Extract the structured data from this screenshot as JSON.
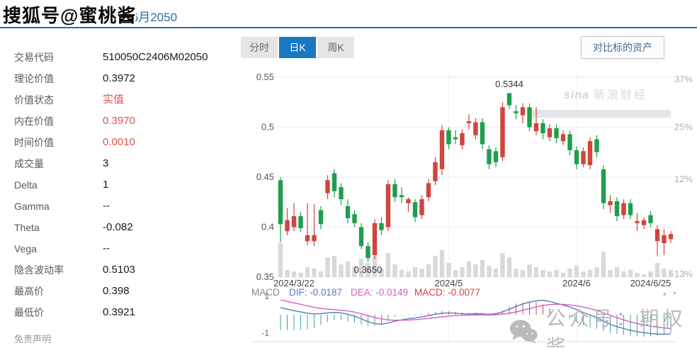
{
  "watermarks": {
    "sohu": "搜狐号@蜜桃酱",
    "sina_logo": "sina",
    "sina_cn": "新浪财经",
    "wechat": "公众号：期权酱"
  },
  "header": {
    "title_visible": "TF购6月2050"
  },
  "sidebar": {
    "rows": [
      {
        "label": "交易代码",
        "value": "510050C2406M02050",
        "accent": "default"
      },
      {
        "label": "理论价值",
        "value": "0.3972",
        "accent": "default"
      },
      {
        "label": "价值状态",
        "value": "实值",
        "accent": "red"
      },
      {
        "label": "内在价值",
        "value": "0.3970",
        "accent": "red"
      },
      {
        "label": "时间价值",
        "value": "0.0010",
        "accent": "red"
      },
      {
        "label": "成交量",
        "value": "3",
        "accent": "default"
      },
      {
        "label": "Delta",
        "value": "1",
        "accent": "default"
      },
      {
        "label": "Gamma",
        "value": "--",
        "accent": "default"
      },
      {
        "label": "Theta",
        "value": "-0.082",
        "accent": "default"
      },
      {
        "label": "Vega",
        "value": "--",
        "accent": "default"
      },
      {
        "label": "隐含波动率",
        "value": "0.5103",
        "accent": "default"
      },
      {
        "label": "最高价",
        "value": "0.398",
        "accent": "default"
      },
      {
        "label": "最低价",
        "value": "0.3921",
        "accent": "default"
      }
    ],
    "disclaimer": "免责声明"
  },
  "toolbar": {
    "tabs": [
      {
        "label": "分时"
      },
      {
        "label": "日K"
      },
      {
        "label": "周K"
      }
    ],
    "active_index": 1,
    "compare_button": "对比标的资产"
  },
  "colors": {
    "up": "#d0453c",
    "down": "#1f9e4d",
    "volume": "#d9d9d9",
    "dif": "#5b79bd",
    "dea": "#cf62c4",
    "hist_pos": "#c0504d",
    "hist_neg": "#46a0a0",
    "grid": "#ececec",
    "axis_text": "#555555",
    "pct_text": "#b0b0b0",
    "accent_blue": "#1779c4",
    "red_text": "#d9534f",
    "band": "#e2e6e8"
  },
  "chart_data": {
    "type": "candlestick",
    "title": "",
    "xlabel": "",
    "ylabel": "",
    "ylim": [
      0.35,
      0.55
    ],
    "grid": true,
    "y_axis_values": [
      0.55,
      0.5,
      0.45,
      0.4,
      0.35
    ],
    "y_axis_labels": [
      "0.55",
      "0.5",
      "0.45",
      "0.4",
      "0.35"
    ],
    "pct_axis": {
      "base_price": 0.4,
      "values": [
        37,
        25,
        12,
        -13
      ],
      "labels": [
        "37%",
        "25%",
        "12%",
        "-13%"
      ]
    },
    "x_ticks": [
      {
        "label": "2024/3/22",
        "at_index": 2,
        "gridline": false
      },
      {
        "label": "2024/5",
        "at_index": 25,
        "gridline": true
      },
      {
        "label": "2024/6",
        "at_index": 44,
        "gridline": true
      },
      {
        "label": "2024/6/25",
        "at_index": 55,
        "gridline": false
      }
    ],
    "annotations": {
      "high_label": "0.5344",
      "high_index": 34,
      "low_label": "0.3650",
      "low_index": 13
    },
    "candles_ohlc": [
      [
        0.447,
        0.45,
        0.385,
        0.403
      ],
      [
        0.396,
        0.419,
        0.392,
        0.407
      ],
      [
        0.4,
        0.424,
        0.396,
        0.411
      ],
      [
        0.411,
        0.415,
        0.395,
        0.399
      ],
      [
        0.386,
        0.424,
        0.382,
        0.392
      ],
      [
        0.386,
        0.423,
        0.381,
        0.392
      ],
      [
        0.417,
        0.421,
        0.398,
        0.403
      ],
      [
        0.434,
        0.452,
        0.428,
        0.447
      ],
      [
        0.454,
        0.458,
        0.43,
        0.436
      ],
      [
        0.44,
        0.444,
        0.422,
        0.428
      ],
      [
        0.421,
        0.428,
        0.404,
        0.409
      ],
      [
        0.413,
        0.417,
        0.4,
        0.404
      ],
      [
        0.4,
        0.404,
        0.378,
        0.381
      ],
      [
        0.381,
        0.385,
        0.365,
        0.369
      ],
      [
        0.372,
        0.408,
        0.368,
        0.404
      ],
      [
        0.404,
        0.41,
        0.392,
        0.397
      ],
      [
        0.4,
        0.447,
        0.396,
        0.443
      ],
      [
        0.443,
        0.448,
        0.425,
        0.43
      ],
      [
        0.432,
        0.44,
        0.424,
        0.43
      ],
      [
        0.424,
        0.43,
        0.415,
        0.428
      ],
      [
        0.425,
        0.428,
        0.405,
        0.41
      ],
      [
        0.412,
        0.432,
        0.408,
        0.428
      ],
      [
        0.43,
        0.448,
        0.426,
        0.444
      ],
      [
        0.446,
        0.47,
        0.442,
        0.465
      ],
      [
        0.458,
        0.502,
        0.452,
        0.497
      ],
      [
        0.497,
        0.5,
        0.478,
        0.483
      ],
      [
        0.49,
        0.497,
        0.483,
        0.488
      ],
      [
        0.482,
        0.498,
        0.478,
        0.494
      ],
      [
        0.504,
        0.513,
        0.498,
        0.506
      ],
      [
        0.492,
        0.509,
        0.488,
        0.505
      ],
      [
        0.505,
        0.509,
        0.478,
        0.483
      ],
      [
        0.478,
        0.482,
        0.458,
        0.463
      ],
      [
        0.476,
        0.48,
        0.46,
        0.465
      ],
      [
        0.47,
        0.525,
        0.466,
        0.52
      ],
      [
        0.534,
        0.5344,
        0.518,
        0.522
      ],
      [
        0.516,
        0.522,
        0.508,
        0.514
      ],
      [
        0.512,
        0.524,
        0.504,
        0.52
      ],
      [
        0.52,
        0.524,
        0.496,
        0.5
      ],
      [
        0.496,
        0.52,
        0.492,
        0.504
      ],
      [
        0.504,
        0.508,
        0.488,
        0.494
      ],
      [
        0.49,
        0.503,
        0.486,
        0.499
      ],
      [
        0.499,
        0.503,
        0.484,
        0.489
      ],
      [
        0.486,
        0.497,
        0.482,
        0.493
      ],
      [
        0.493,
        0.496,
        0.472,
        0.477
      ],
      [
        0.477,
        0.481,
        0.458,
        0.463
      ],
      [
        0.463,
        0.48,
        0.46,
        0.476
      ],
      [
        0.462,
        0.49,
        0.458,
        0.486
      ],
      [
        0.488,
        0.492,
        0.47,
        0.475
      ],
      [
        0.458,
        0.462,
        0.418,
        0.424
      ],
      [
        0.422,
        0.432,
        0.414,
        0.426
      ],
      [
        0.426,
        0.43,
        0.406,
        0.411
      ],
      [
        0.412,
        0.428,
        0.408,
        0.424
      ],
      [
        0.424,
        0.428,
        0.408,
        0.412
      ],
      [
        0.404,
        0.414,
        0.396,
        0.406
      ],
      [
        0.402,
        0.41,
        0.398,
        0.407
      ],
      [
        0.412,
        0.416,
        0.4,
        0.404
      ],
      [
        0.386,
        0.402,
        0.371,
        0.398
      ],
      [
        0.384,
        0.398,
        0.372,
        0.392
      ],
      [
        0.388,
        0.396,
        0.384,
        0.393
      ]
    ],
    "volumes": [
      48,
      10,
      8,
      6,
      14,
      12,
      8,
      28,
      30,
      18,
      22,
      16,
      26,
      20,
      30,
      12,
      34,
      18,
      10,
      8,
      14,
      12,
      18,
      30,
      38,
      20,
      10,
      14,
      22,
      18,
      24,
      16,
      12,
      34,
      28,
      12,
      10,
      18,
      14,
      10,
      8,
      10,
      6,
      12,
      16,
      8,
      10,
      14,
      36,
      10,
      14,
      8,
      10,
      6,
      4,
      8,
      20,
      12,
      10
    ],
    "macd": {
      "info": {
        "title": "MACD",
        "dif": "DIF: -0.0187",
        "dea": "DEA: -0.0149",
        "macd": "MACD: -0.0077"
      },
      "scale_labels": [
        "1",
        "-1"
      ],
      "scale_values": [
        1,
        -1
      ],
      "dif": [
        0.38,
        0.3,
        0.22,
        0.15,
        0.08,
        0.04,
        0.06,
        0.1,
        0.12,
        0.1,
        0.02,
        -0.08,
        -0.22,
        -0.38,
        -0.48,
        -0.52,
        -0.45,
        -0.35,
        -0.28,
        -0.22,
        -0.18,
        -0.12,
        -0.05,
        0.02,
        0.08,
        0.1,
        0.08,
        0.05,
        0.04,
        0.05,
        0.04,
        0.02,
        0.05,
        0.15,
        0.3,
        0.45,
        0.58,
        0.68,
        0.75,
        0.78,
        0.72,
        0.62,
        0.52,
        0.42,
        0.28,
        0.12,
        -0.02,
        -0.15,
        -0.35,
        -0.52,
        -0.65,
        -0.75,
        -0.85,
        -0.92,
        -0.98,
        -1.02,
        -1.05,
        -1.06,
        -1.05
      ],
      "dea": [
        0.8,
        0.72,
        0.64,
        0.56,
        0.48,
        0.4,
        0.34,
        0.3,
        0.27,
        0.24,
        0.2,
        0.14,
        0.05,
        -0.05,
        -0.15,
        -0.23,
        -0.28,
        -0.3,
        -0.3,
        -0.29,
        -0.27,
        -0.24,
        -0.2,
        -0.16,
        -0.12,
        -0.08,
        -0.05,
        -0.03,
        -0.02,
        -0.01,
        -0.01,
        -0.01,
        0.0,
        0.03,
        0.08,
        0.15,
        0.24,
        0.33,
        0.42,
        0.5,
        0.55,
        0.57,
        0.56,
        0.53,
        0.48,
        0.41,
        0.33,
        0.23,
        0.1,
        -0.03,
        -0.16,
        -0.28,
        -0.39,
        -0.48,
        -0.56,
        -0.63,
        -0.68,
        -0.72,
        -0.75
      ],
      "histogram": [
        -0.84,
        -0.84,
        -0.84,
        -0.82,
        -0.8,
        -0.72,
        -0.56,
        -0.4,
        -0.3,
        -0.28,
        -0.36,
        -0.44,
        -0.54,
        -0.62,
        -0.6,
        -0.5,
        -0.34,
        -0.1,
        -0.04,
        0.02,
        -0.05,
        0.05,
        0.1,
        0.15,
        0.2,
        0.18,
        0.15,
        0.12,
        0.1,
        0.12,
        0.1,
        0.06,
        0.1,
        0.24,
        0.44,
        0.6,
        0.68,
        0.7,
        0.66,
        0.56,
        0.34,
        0.1,
        -0.08,
        -0.22,
        -0.4,
        -0.58,
        -0.7,
        -0.76,
        -0.9,
        -0.98,
        -1.05,
        -1.1,
        -1.15,
        -1.18,
        -1.2,
        -1.18,
        -1.12,
        -1.05,
        -0.98
      ]
    }
  },
  "controls": {
    "scroll_up": "▲",
    "scroll_down": "▼"
  }
}
